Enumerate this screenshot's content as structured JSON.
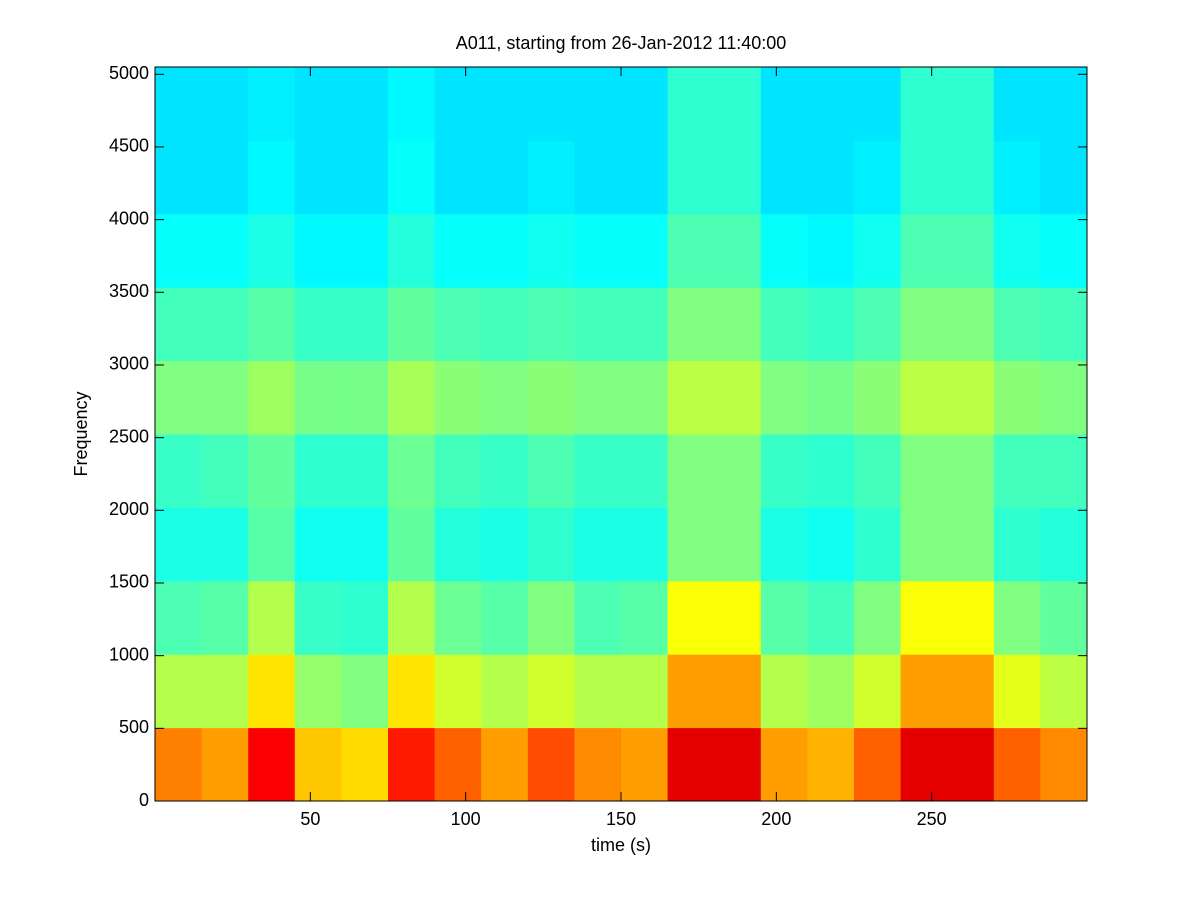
{
  "chart_data": {
    "type": "heatmap",
    "title": "A011, starting from 26-Jan-2012 11:40:00",
    "xlabel": "time (s)",
    "ylabel": "Frequency",
    "xlim": [
      0,
      300
    ],
    "ylim": [
      0,
      5050
    ],
    "xticks": [
      50,
      100,
      150,
      200,
      250
    ],
    "yticks": [
      0,
      500,
      1000,
      1500,
      2000,
      2500,
      3000,
      3500,
      4000,
      4500,
      5000
    ],
    "colormap": "jet",
    "xbins": [
      0,
      15,
      30,
      45,
      60,
      75,
      90,
      105,
      120,
      135,
      150,
      165,
      180,
      195,
      210,
      225,
      240,
      255,
      270,
      285,
      300
    ],
    "ybins": [
      0,
      505,
      1010,
      1515,
      2020,
      2525,
      3030,
      3535,
      4040,
      4545,
      5050
    ],
    "z": [
      [
        0.75,
        0.72,
        0.88,
        0.68,
        0.66,
        0.85,
        0.78,
        0.72,
        0.8,
        0.74,
        0.72,
        0.9,
        0.9,
        0.72,
        0.7,
        0.78,
        0.9,
        0.9,
        0.78,
        0.74
      ],
      [
        0.55,
        0.55,
        0.65,
        0.52,
        0.5,
        0.65,
        0.58,
        0.55,
        0.58,
        0.55,
        0.55,
        0.72,
        0.72,
        0.55,
        0.53,
        0.58,
        0.72,
        0.72,
        0.6,
        0.56
      ],
      [
        0.45,
        0.46,
        0.55,
        0.43,
        0.42,
        0.55,
        0.48,
        0.46,
        0.5,
        0.45,
        0.46,
        0.62,
        0.62,
        0.46,
        0.44,
        0.5,
        0.62,
        0.62,
        0.5,
        0.47
      ],
      [
        0.4,
        0.4,
        0.46,
        0.39,
        0.39,
        0.47,
        0.41,
        0.4,
        0.42,
        0.4,
        0.4,
        0.5,
        0.5,
        0.4,
        0.39,
        0.42,
        0.5,
        0.5,
        0.42,
        0.41
      ],
      [
        0.43,
        0.44,
        0.47,
        0.42,
        0.42,
        0.48,
        0.44,
        0.43,
        0.45,
        0.43,
        0.43,
        0.5,
        0.5,
        0.43,
        0.42,
        0.44,
        0.5,
        0.5,
        0.44,
        0.44
      ],
      [
        0.5,
        0.5,
        0.53,
        0.49,
        0.49,
        0.54,
        0.51,
        0.5,
        0.51,
        0.5,
        0.5,
        0.56,
        0.56,
        0.5,
        0.49,
        0.51,
        0.56,
        0.56,
        0.51,
        0.5
      ],
      [
        0.44,
        0.44,
        0.46,
        0.43,
        0.43,
        0.47,
        0.45,
        0.44,
        0.45,
        0.44,
        0.44,
        0.5,
        0.5,
        0.44,
        0.43,
        0.45,
        0.5,
        0.5,
        0.45,
        0.44
      ],
      [
        0.38,
        0.38,
        0.4,
        0.37,
        0.37,
        0.41,
        0.38,
        0.38,
        0.39,
        0.38,
        0.38,
        0.45,
        0.45,
        0.38,
        0.37,
        0.39,
        0.45,
        0.45,
        0.39,
        0.38
      ],
      [
        0.35,
        0.35,
        0.37,
        0.35,
        0.35,
        0.38,
        0.35,
        0.35,
        0.36,
        0.35,
        0.35,
        0.42,
        0.42,
        0.35,
        0.35,
        0.36,
        0.42,
        0.42,
        0.36,
        0.35
      ],
      [
        0.35,
        0.35,
        0.36,
        0.35,
        0.35,
        0.37,
        0.35,
        0.35,
        0.35,
        0.35,
        0.35,
        0.42,
        0.42,
        0.35,
        0.35,
        0.35,
        0.42,
        0.42,
        0.35,
        0.35
      ]
    ]
  }
}
